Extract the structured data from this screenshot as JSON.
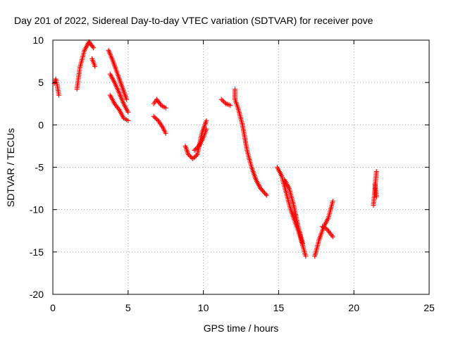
{
  "chart_data": {
    "type": "scatter",
    "title": "Day 201 of 2022, Sidereal Day-to-day VTEC variation (SDTVAR) for receiver pove",
    "xlabel": "GPS time / hours",
    "ylabel": "SDTVAR / TECUs",
    "xlim": [
      0,
      25
    ],
    "ylim": [
      -20,
      10
    ],
    "xticks": [
      0,
      5,
      10,
      15,
      20,
      25
    ],
    "yticks": [
      -20,
      -15,
      -10,
      -5,
      0,
      5,
      10
    ],
    "xtick_labels": [
      "0",
      "5",
      "10",
      "15",
      "20",
      "25"
    ],
    "ytick_labels": [
      "-20",
      "-15",
      "-10",
      "-5",
      "0",
      "5",
      "10"
    ],
    "grid": true,
    "marker": "+",
    "series": [
      {
        "name": "SDTVAR",
        "color": "#ff0000",
        "tracks": [
          [
            [
              0.1,
              4.9
            ],
            [
              0.2,
              5.4
            ],
            [
              0.3,
              4.6
            ],
            [
              0.4,
              3.5
            ]
          ],
          [
            [
              1.6,
              4.2
            ],
            [
              1.8,
              6.8
            ],
            [
              2.1,
              8.8
            ],
            [
              2.4,
              9.8
            ],
            [
              2.7,
              9.1
            ]
          ],
          [
            [
              2.6,
              7.8
            ],
            [
              2.8,
              6.9
            ]
          ],
          [
            [
              3.7,
              8.8
            ],
            [
              4.0,
              7.5
            ],
            [
              4.3,
              6.0
            ],
            [
              4.6,
              4.5
            ],
            [
              4.9,
              3.0
            ]
          ],
          [
            [
              3.8,
              6.0
            ],
            [
              4.1,
              5.0
            ],
            [
              4.4,
              3.8
            ],
            [
              4.7,
              2.5
            ],
            [
              5.0,
              1.5
            ]
          ],
          [
            [
              3.8,
              3.5
            ],
            [
              4.1,
              2.5
            ],
            [
              4.4,
              1.8
            ],
            [
              4.7,
              0.8
            ],
            [
              5.0,
              0.5
            ]
          ],
          [
            [
              6.7,
              2.5
            ],
            [
              6.9,
              3.0
            ],
            [
              7.2,
              2.3
            ],
            [
              7.5,
              2.0
            ]
          ],
          [
            [
              6.7,
              1.0
            ],
            [
              7.0,
              0.5
            ],
            [
              7.3,
              -0.3
            ],
            [
              7.5,
              -1.0
            ]
          ],
          [
            [
              8.8,
              -2.5
            ],
            [
              9.0,
              -3.5
            ],
            [
              9.3,
              -4.0
            ],
            [
              9.6,
              -3.5
            ],
            [
              9.9,
              -1.0
            ],
            [
              10.2,
              0.5
            ]
          ],
          [
            [
              9.4,
              -3.0
            ],
            [
              9.7,
              -2.5
            ],
            [
              10.0,
              -1.5
            ],
            [
              10.2,
              -0.5
            ]
          ],
          [
            [
              11.2,
              3.0
            ],
            [
              11.5,
              2.5
            ],
            [
              11.8,
              2.3
            ]
          ],
          [
            [
              12.1,
              4.2
            ],
            [
              12.1,
              3.0
            ],
            [
              12.3,
              2.0
            ],
            [
              12.6,
              0.0
            ],
            [
              12.9,
              -3.0
            ],
            [
              13.2,
              -5.0
            ],
            [
              13.5,
              -6.5
            ],
            [
              13.8,
              -7.5
            ],
            [
              14.2,
              -8.3
            ]
          ],
          [
            [
              14.9,
              -5.0
            ],
            [
              15.2,
              -6.0
            ],
            [
              15.5,
              -8.0
            ],
            [
              15.8,
              -10.0
            ],
            [
              16.1,
              -11.5
            ],
            [
              16.4,
              -13.0
            ],
            [
              16.8,
              -15.5
            ]
          ],
          [
            [
              15.4,
              -6.5
            ],
            [
              15.7,
              -7.5
            ],
            [
              16.0,
              -9.5
            ],
            [
              16.3,
              -12.0
            ],
            [
              16.6,
              -14.0
            ]
          ],
          [
            [
              17.4,
              -15.5
            ],
            [
              17.7,
              -13.5
            ],
            [
              18.0,
              -12.0
            ],
            [
              18.3,
              -11.0
            ],
            [
              18.6,
              -9.0
            ]
          ],
          [
            [
              17.9,
              -12.0
            ],
            [
              18.2,
              -12.3
            ],
            [
              18.6,
              -13.2
            ]
          ],
          [
            [
              21.3,
              -9.5
            ],
            [
              21.4,
              -7.5
            ],
            [
              21.5,
              -5.5
            ]
          ],
          [
            [
              21.4,
              -7.0
            ],
            [
              21.5,
              -8.5
            ]
          ]
        ]
      }
    ]
  }
}
